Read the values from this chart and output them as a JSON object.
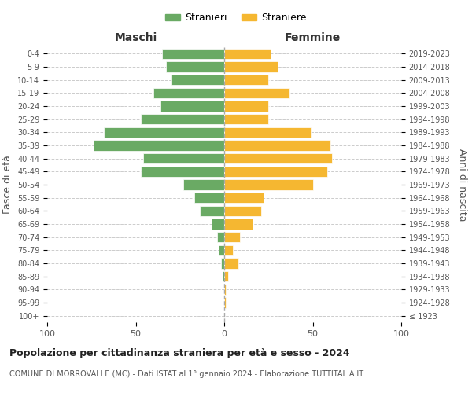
{
  "age_groups": [
    "100+",
    "95-99",
    "90-94",
    "85-89",
    "80-84",
    "75-79",
    "70-74",
    "65-69",
    "60-64",
    "55-59",
    "50-54",
    "45-49",
    "40-44",
    "35-39",
    "30-34",
    "25-29",
    "20-24",
    "15-19",
    "10-14",
    "5-9",
    "0-4"
  ],
  "birth_years": [
    "≤ 1923",
    "1924-1928",
    "1929-1933",
    "1934-1938",
    "1939-1943",
    "1944-1948",
    "1949-1953",
    "1954-1958",
    "1959-1963",
    "1964-1968",
    "1969-1973",
    "1974-1978",
    "1979-1983",
    "1984-1988",
    "1989-1993",
    "1994-1998",
    "1999-2003",
    "2004-2008",
    "2009-2013",
    "2014-2018",
    "2019-2023"
  ],
  "maschi": [
    0,
    0,
    0,
    1,
    2,
    3,
    4,
    7,
    14,
    17,
    23,
    47,
    46,
    74,
    68,
    47,
    36,
    40,
    30,
    33,
    35
  ],
  "femmine": [
    0,
    1,
    1,
    2,
    8,
    5,
    9,
    16,
    21,
    22,
    50,
    58,
    61,
    60,
    49,
    25,
    25,
    37,
    25,
    30,
    26
  ],
  "color_maschi": "#6aaa64",
  "color_femmine": "#f5b731",
  "title": "Popolazione per cittadinanza straniera per età e sesso - 2024",
  "subtitle": "COMUNE DI MORROVALLE (MC) - Dati ISTAT al 1° gennaio 2024 - Elaborazione TUTTITALIA.IT",
  "xlabel_left": "Maschi",
  "xlabel_right": "Femmine",
  "ylabel_left": "Fasce di età",
  "ylabel_right": "Anni di nascita",
  "legend_maschi": "Stranieri",
  "legend_femmine": "Straniere",
  "xlim": 100,
  "bg_color": "#ffffff",
  "grid_color": "#cccccc"
}
